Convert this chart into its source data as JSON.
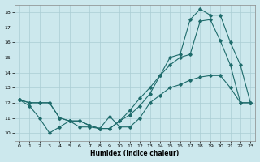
{
  "xlabel": "Humidex (Indice chaleur)",
  "xlim": [
    -0.5,
    23.5
  ],
  "ylim": [
    9.5,
    18.5
  ],
  "yticks": [
    10,
    11,
    12,
    13,
    14,
    15,
    16,
    17,
    18
  ],
  "xticks": [
    0,
    1,
    2,
    3,
    4,
    5,
    6,
    7,
    8,
    9,
    10,
    11,
    12,
    13,
    14,
    15,
    16,
    17,
    18,
    19,
    20,
    21,
    22,
    23
  ],
  "bg_color": "#cce8ed",
  "grid_color": "#aacdd4",
  "line_color": "#1e6b6b",
  "line1_x": [
    0,
    1,
    2,
    3,
    4,
    5,
    6,
    7,
    8,
    9,
    10,
    11,
    12,
    13,
    14,
    15,
    16,
    17,
    18,
    19,
    20,
    21,
    22,
    23
  ],
  "line1_y": [
    12.2,
    11.8,
    11.0,
    10.0,
    10.4,
    10.8,
    10.4,
    10.4,
    10.3,
    11.1,
    10.4,
    10.4,
    11.0,
    12.0,
    12.5,
    13.0,
    13.2,
    13.5,
    13.7,
    13.8,
    13.8,
    13.0,
    12.0,
    12.0
  ],
  "line2_x": [
    0,
    1,
    2,
    3,
    4,
    5,
    6,
    7,
    8,
    9,
    10,
    11,
    12,
    13,
    14,
    15,
    16,
    17,
    18,
    19,
    20,
    21,
    22,
    23
  ],
  "line2_y": [
    12.2,
    12.0,
    12.0,
    12.0,
    11.0,
    10.8,
    10.8,
    10.5,
    10.3,
    10.3,
    10.8,
    11.2,
    11.8,
    12.6,
    13.8,
    14.5,
    15.0,
    15.2,
    17.4,
    17.5,
    16.1,
    14.5,
    12.0,
    12.0
  ],
  "line3_x": [
    0,
    1,
    2,
    3,
    4,
    5,
    6,
    7,
    8,
    9,
    10,
    11,
    12,
    13,
    14,
    15,
    16,
    17,
    18,
    19,
    20,
    21,
    22,
    23
  ],
  "line3_y": [
    12.2,
    12.0,
    12.0,
    12.0,
    11.0,
    10.8,
    10.8,
    10.5,
    10.3,
    10.3,
    10.8,
    11.5,
    12.3,
    13.0,
    13.8,
    15.0,
    15.2,
    17.5,
    18.2,
    17.8,
    17.8,
    16.0,
    14.5,
    12.0
  ]
}
